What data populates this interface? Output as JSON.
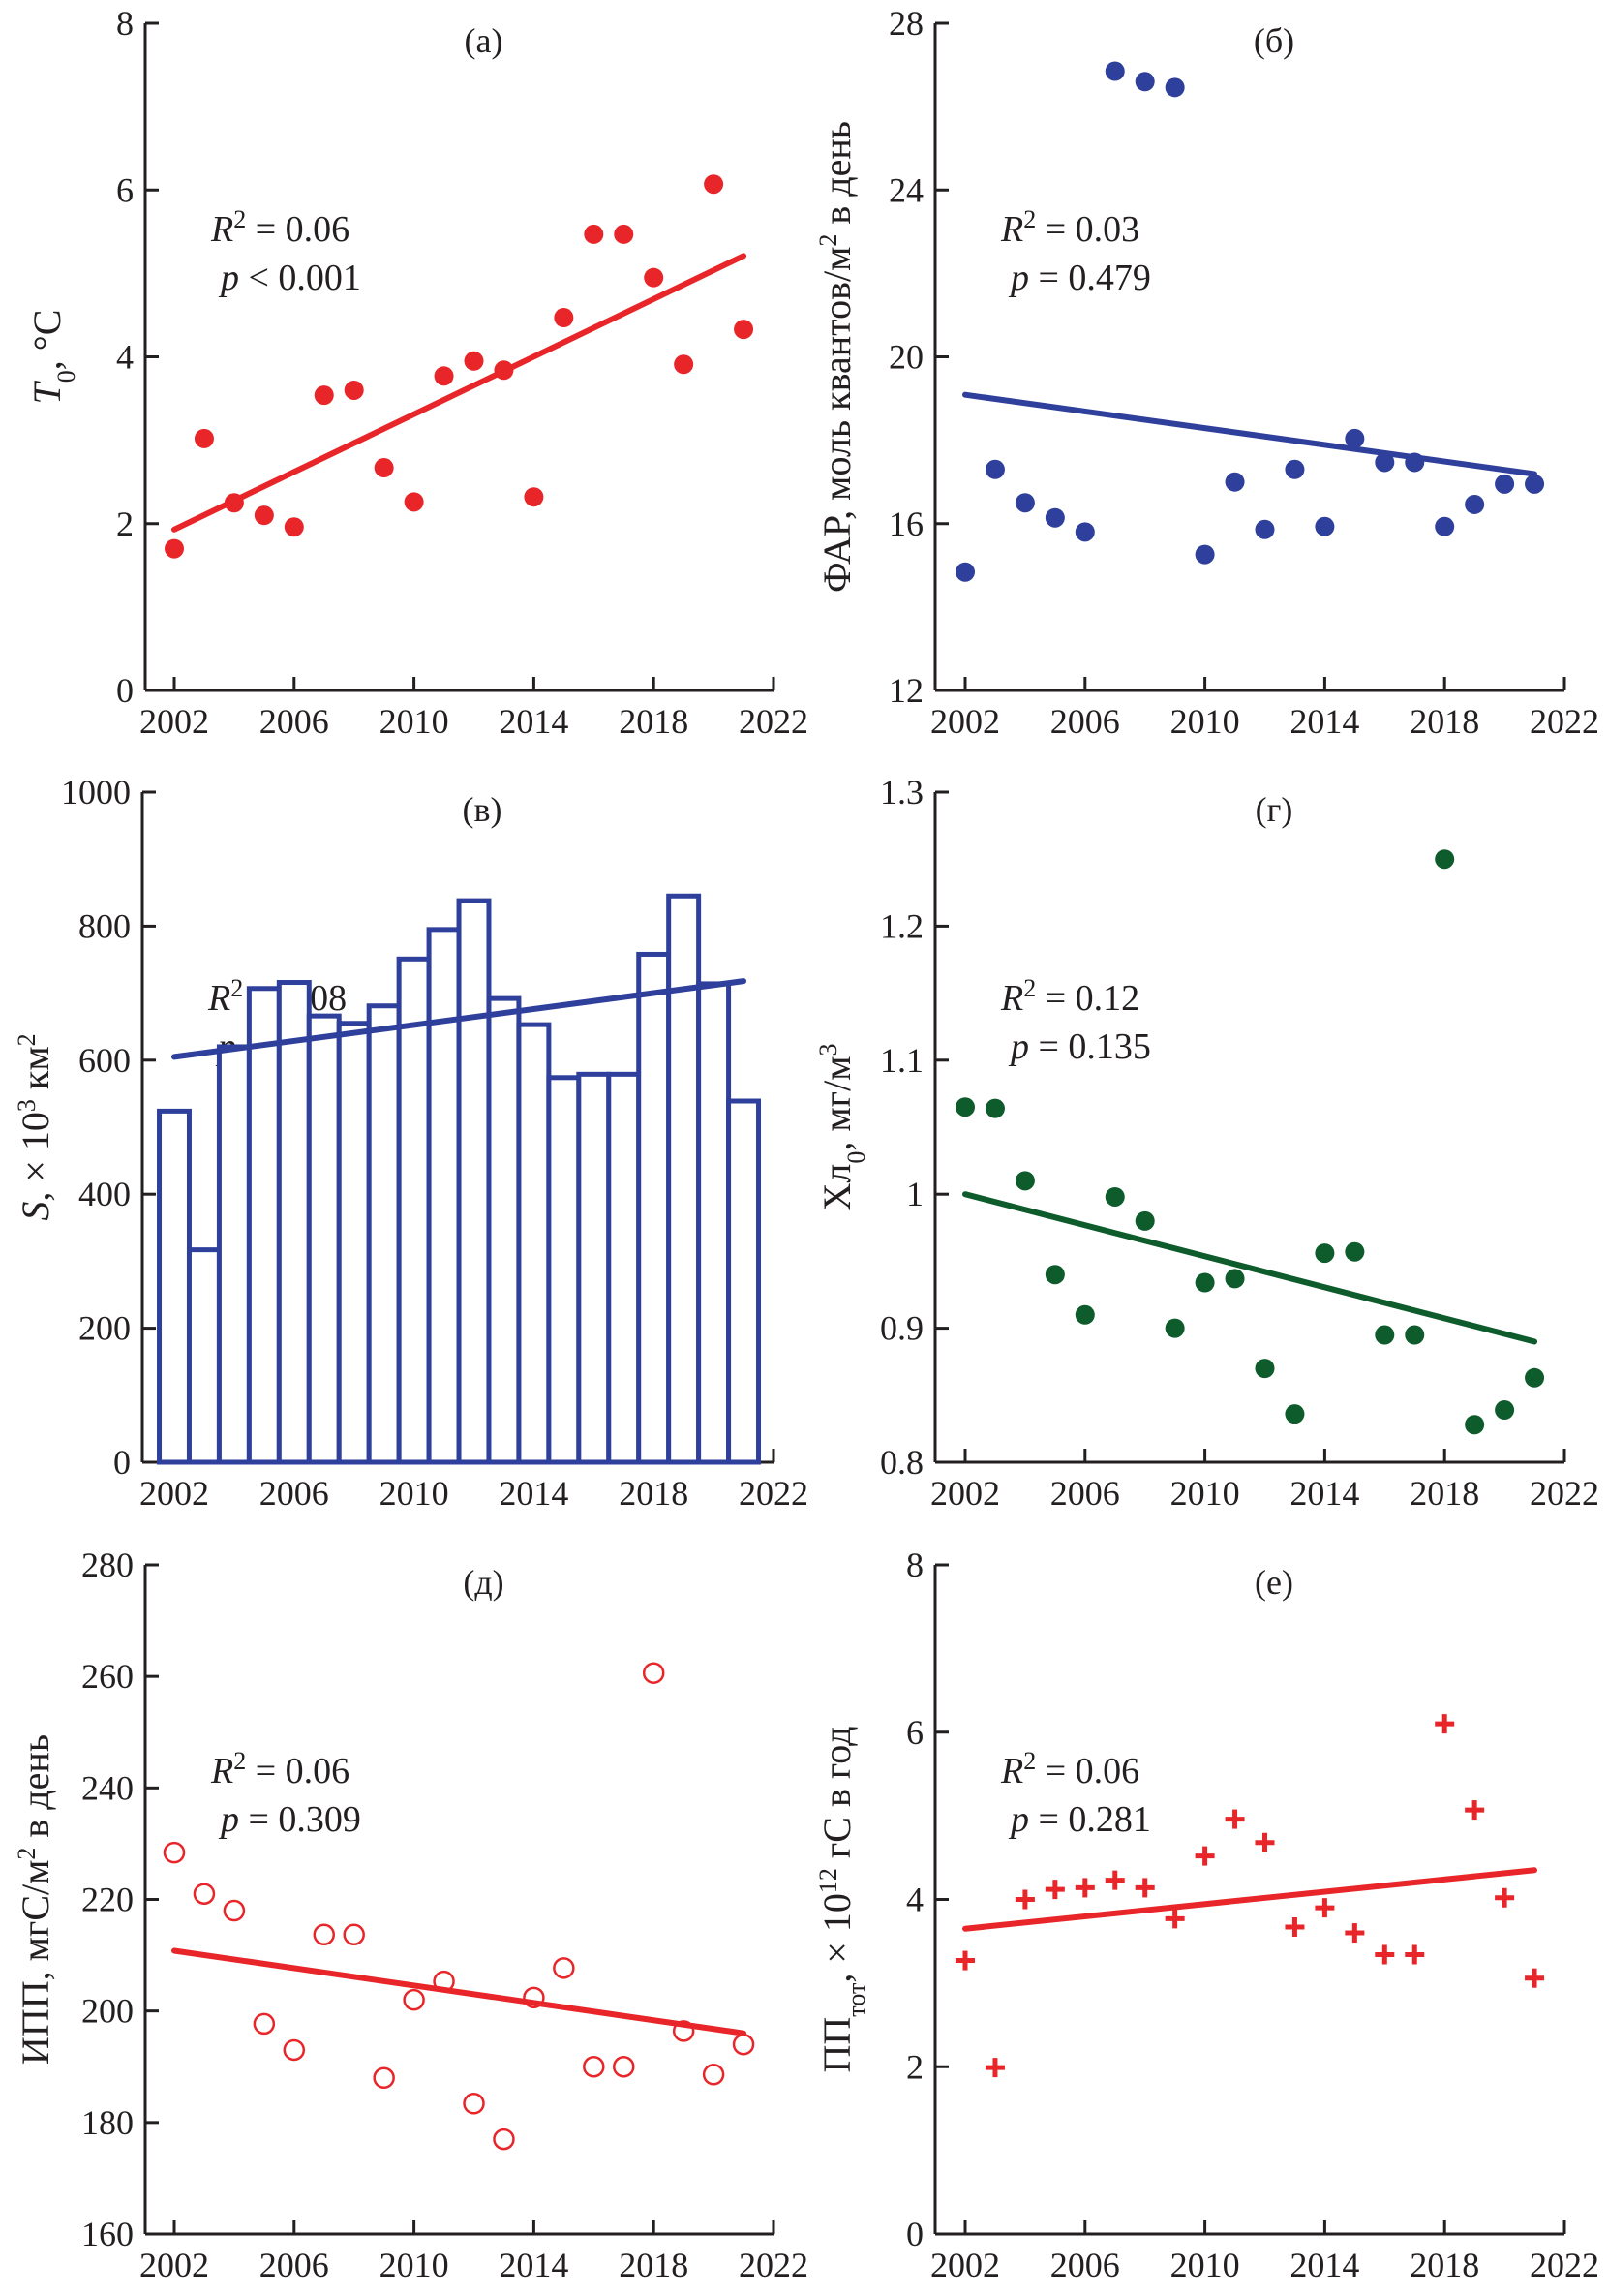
{
  "chart_data": [
    {
      "panel": "(а)",
      "type": "scatter",
      "marker": "filled-circle",
      "color": "#e8262a",
      "ylabel": [
        {
          "t": "T",
          "i": true
        },
        {
          "t": "0",
          "sub": true
        },
        {
          "t": ", °C"
        }
      ],
      "ylim": [
        0,
        8
      ],
      "yticks": [
        0,
        2,
        4,
        6,
        8
      ],
      "xlim": [
        2002,
        2022
      ],
      "xticks": [
        2002,
        2006,
        2010,
        2014,
        2018,
        2022
      ],
      "annotations": [
        "R² = 0.06",
        "p < 0.001"
      ],
      "x": [
        2002,
        2003,
        2004,
        2005,
        2006,
        2007,
        2008,
        2009,
        2010,
        2011,
        2012,
        2013,
        2014,
        2015,
        2016,
        2017,
        2018,
        2019,
        2020,
        2021
      ],
      "y": [
        1.7,
        3.02,
        2.25,
        2.1,
        1.96,
        3.54,
        3.6,
        2.67,
        2.26,
        3.77,
        3.95,
        3.84,
        2.32,
        4.47,
        5.47,
        5.47,
        4.95,
        3.91,
        6.07,
        4.33
      ],
      "trend": {
        "x": [
          2002,
          2021
        ],
        "y": [
          1.93,
          5.21
        ]
      }
    },
    {
      "panel": "(б)",
      "type": "scatter",
      "marker": "filled-circle",
      "color": "#2e3f9c",
      "ylabel": [
        {
          "t": "ФАР, моль квантов/м"
        },
        {
          "t": "2",
          "sup": true
        },
        {
          "t": " в день"
        }
      ],
      "ylim": [
        12,
        28
      ],
      "yticks": [
        12,
        16,
        20,
        24,
        28
      ],
      "xlim": [
        2002,
        2022
      ],
      "xticks": [
        2002,
        2006,
        2010,
        2014,
        2018,
        2022
      ],
      "annotations": [
        "R² = 0.03",
        "p = 0.479"
      ],
      "x": [
        2002,
        2003,
        2004,
        2005,
        2006,
        2007,
        2008,
        2009,
        2010,
        2011,
        2012,
        2013,
        2014,
        2015,
        2016,
        2017,
        2018,
        2019,
        2020,
        2021
      ],
      "y": [
        14.84,
        17.3,
        16.5,
        16.14,
        15.8,
        26.85,
        26.6,
        26.46,
        15.26,
        17.0,
        15.86,
        17.3,
        15.93,
        18.04,
        17.47,
        17.47,
        15.93,
        16.46,
        16.95,
        16.95
      ],
      "trend": {
        "x": [
          2002,
          2021
        ],
        "y": [
          19.09,
          17.19
        ]
      }
    },
    {
      "panel": "(в)",
      "type": "bar",
      "marker": "outline-bar",
      "color": "#2e3f9c",
      "ylabel": [
        {
          "t": "S",
          "i": true
        },
        {
          "t": ", × 10"
        },
        {
          "t": "3",
          "sup": true
        },
        {
          "t": " км"
        },
        {
          "t": "2",
          "sup": true
        }
      ],
      "ylim": [
        0,
        1000
      ],
      "yticks": [
        0,
        200,
        400,
        600,
        800,
        1000
      ],
      "xlim": [
        2002,
        2022
      ],
      "xticks": [
        2002,
        2006,
        2010,
        2014,
        2018,
        2022
      ],
      "annotations": [
        "R² = 0.08",
        "p = 0.216"
      ],
      "x": [
        2002,
        2003,
        2004,
        2005,
        2006,
        2007,
        2008,
        2009,
        2010,
        2011,
        2012,
        2013,
        2014,
        2015,
        2016,
        2017,
        2018,
        2019,
        2020,
        2021
      ],
      "y": [
        524,
        317,
        620,
        707,
        716,
        666,
        655,
        681,
        751,
        795,
        838,
        692,
        653,
        574,
        579,
        579,
        758,
        845,
        714,
        539
      ],
      "trend": {
        "x": [
          2002,
          2021
        ],
        "y": [
          605,
          718
        ]
      }
    },
    {
      "panel": "(г)",
      "type": "scatter",
      "marker": "filled-circle",
      "color": "#0e5b2c",
      "ylabel": [
        {
          "t": "Хл"
        },
        {
          "t": "0",
          "sub": true
        },
        {
          "t": ", мг/м"
        },
        {
          "t": "3",
          "sup": true
        }
      ],
      "ylim": [
        0.8,
        1.3
      ],
      "yticks": [
        0.8,
        0.9,
        1.0,
        1.1,
        1.2,
        1.3
      ],
      "xlim": [
        2002,
        2022
      ],
      "xticks": [
        2002,
        2006,
        2010,
        2014,
        2018,
        2022
      ],
      "annotations": [
        "R² = 0.12",
        "p = 0.135"
      ],
      "x": [
        2002,
        2003,
        2004,
        2005,
        2006,
        2007,
        2008,
        2009,
        2010,
        2011,
        2012,
        2013,
        2014,
        2015,
        2016,
        2017,
        2018,
        2019,
        2020,
        2021
      ],
      "y": [
        1.065,
        1.064,
        1.01,
        0.94,
        0.91,
        0.998,
        0.98,
        0.9,
        0.934,
        0.937,
        0.87,
        0.836,
        0.956,
        0.957,
        0.895,
        0.895,
        1.25,
        0.828,
        0.839,
        0.863
      ],
      "trend": {
        "x": [
          2002,
          2021
        ],
        "y": [
          1.0,
          0.89
        ]
      }
    },
    {
      "panel": "(д)",
      "type": "scatter",
      "marker": "open-circle",
      "color": "#e8262a",
      "ylabel": [
        {
          "t": "ИПП, мгС/м"
        },
        {
          "t": "2",
          "sup": true
        },
        {
          "t": " в день"
        }
      ],
      "ylim": [
        160,
        280
      ],
      "yticks": [
        160,
        180,
        200,
        220,
        240,
        260,
        280
      ],
      "xlim": [
        2002,
        2022
      ],
      "xticks": [
        2002,
        2006,
        2010,
        2014,
        2018,
        2022
      ],
      "annotations": [
        "R² = 0.06",
        "p = 0.309"
      ],
      "x": [
        2002,
        2003,
        2004,
        2005,
        2006,
        2007,
        2008,
        2009,
        2010,
        2011,
        2012,
        2013,
        2014,
        2015,
        2016,
        2017,
        2018,
        2019,
        2020,
        2021
      ],
      "y": [
        228.4,
        221,
        218,
        197.7,
        193,
        213.7,
        213.7,
        188,
        202,
        205.3,
        183.4,
        177,
        202.4,
        207.7,
        190,
        190,
        260.6,
        196.4,
        188.6,
        194
      ],
      "trend": {
        "x": [
          2002,
          2021
        ],
        "y": [
          210.8,
          196
        ]
      }
    },
    {
      "panel": "(е)",
      "type": "scatter",
      "marker": "plus",
      "color": "#e8262a",
      "ylabel": [
        {
          "t": "ПП"
        },
        {
          "t": "тот",
          "sub": true
        },
        {
          "t": ", × 10"
        },
        {
          "t": "12",
          "sup": true
        },
        {
          "t": " гС в год"
        }
      ],
      "ylim": [
        0,
        8
      ],
      "yticks": [
        0,
        2,
        4,
        6,
        8
      ],
      "xlim": [
        2002,
        2022
      ],
      "xticks": [
        2002,
        2006,
        2010,
        2014,
        2018,
        2022
      ],
      "annotations": [
        "R² = 0.06",
        "p = 0.281"
      ],
      "x": [
        2002,
        2003,
        2004,
        2005,
        2006,
        2007,
        2008,
        2009,
        2010,
        2011,
        2012,
        2013,
        2014,
        2015,
        2016,
        2017,
        2018,
        2019,
        2020,
        2021
      ],
      "y": [
        3.27,
        1.99,
        4.0,
        4.12,
        4.14,
        4.23,
        4.14,
        3.77,
        4.52,
        4.96,
        4.68,
        3.67,
        3.9,
        3.6,
        3.34,
        3.34,
        6.1,
        5.07,
        4.02,
        3.06
      ],
      "trend": {
        "x": [
          2002,
          2021
        ],
        "y": [
          3.65,
          4.35
        ]
      }
    }
  ]
}
